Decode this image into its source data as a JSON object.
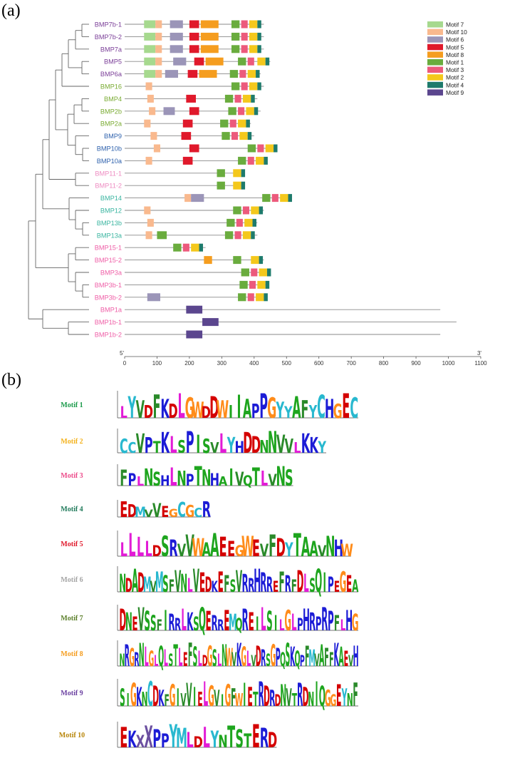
{
  "panel_a_label": "(a)",
  "panel_b_label": "(b)",
  "axis": {
    "start_label": "5'",
    "end_label": "3'",
    "ticks": [
      "0",
      "100",
      "200",
      "300",
      "400",
      "500",
      "600",
      "700",
      "800",
      "900",
      "1000",
      "1100"
    ]
  },
  "motif_colors": {
    "Motif 7": "#a6d98e",
    "Motif 10": "#f9b98e",
    "Motif 6": "#9b95b8",
    "Motif 5": "#e0192b",
    "Motif 8": "#f59d1f",
    "Motif 1": "#6aac3e",
    "Motif 3": "#ec5a7c",
    "Motif 2": "#f4c81c",
    "Motif 4": "#1e7b6c",
    "Motif 9": "#5b468e"
  },
  "legend": [
    "Motif 7",
    "Motif 10",
    "Motif 6",
    "Motif 5",
    "Motif 8",
    "Motif 1",
    "Motif 3",
    "Motif 2",
    "Motif 4",
    "Motif 9"
  ],
  "genes": [
    {
      "name": "BMP7b-1",
      "color": "#7b3f98",
      "len": 430,
      "motifs": [
        [
          "Motif 7",
          60,
          95
        ],
        [
          "Motif 10",
          95,
          115
        ],
        [
          "Motif 6",
          140,
          180
        ],
        [
          "Motif 5",
          200,
          230
        ],
        [
          "Motif 8",
          235,
          290
        ],
        [
          "Motif 1",
          330,
          355
        ],
        [
          "Motif 3",
          360,
          380
        ],
        [
          "Motif 2",
          385,
          410
        ],
        [
          "Motif 4",
          410,
          422
        ]
      ]
    },
    {
      "name": "BMP7b-2",
      "color": "#7b3f98",
      "len": 430,
      "motifs": [
        [
          "Motif 7",
          60,
          95
        ],
        [
          "Motif 10",
          95,
          115
        ],
        [
          "Motif 6",
          140,
          180
        ],
        [
          "Motif 5",
          200,
          230
        ],
        [
          "Motif 8",
          235,
          290
        ],
        [
          "Motif 1",
          330,
          355
        ],
        [
          "Motif 3",
          360,
          380
        ],
        [
          "Motif 2",
          385,
          410
        ],
        [
          "Motif 4",
          410,
          422
        ]
      ]
    },
    {
      "name": "BMP7a",
      "color": "#7b3f98",
      "len": 430,
      "motifs": [
        [
          "Motif 7",
          60,
          95
        ],
        [
          "Motif 10",
          95,
          115
        ],
        [
          "Motif 6",
          140,
          180
        ],
        [
          "Motif 5",
          200,
          230
        ],
        [
          "Motif 8",
          235,
          290
        ],
        [
          "Motif 1",
          330,
          355
        ],
        [
          "Motif 3",
          360,
          380
        ],
        [
          "Motif 2",
          385,
          410
        ],
        [
          "Motif 4",
          410,
          422
        ]
      ]
    },
    {
      "name": "BMP5",
      "color": "#7b3f98",
      "len": 450,
      "motifs": [
        [
          "Motif 7",
          60,
          95
        ],
        [
          "Motif 10",
          95,
          115
        ],
        [
          "Motif 6",
          150,
          190
        ],
        [
          "Motif 5",
          215,
          245
        ],
        [
          "Motif 8",
          250,
          305
        ],
        [
          "Motif 1",
          350,
          375
        ],
        [
          "Motif 3",
          380,
          400
        ],
        [
          "Motif 2",
          410,
          435
        ],
        [
          "Motif 4",
          435,
          447
        ]
      ]
    },
    {
      "name": "BMP6a",
      "color": "#7b3f98",
      "len": 420,
      "motifs": [
        [
          "Motif 7",
          60,
          95
        ],
        [
          "Motif 10",
          95,
          115
        ],
        [
          "Motif 6",
          125,
          165
        ],
        [
          "Motif 5",
          195,
          225
        ],
        [
          "Motif 8",
          230,
          285
        ],
        [
          "Motif 1",
          325,
          350
        ],
        [
          "Motif 3",
          355,
          375
        ],
        [
          "Motif 2",
          380,
          405
        ],
        [
          "Motif 4",
          405,
          417
        ]
      ]
    },
    {
      "name": "BMP16",
      "color": "#7aab33",
      "len": 430,
      "motifs": [
        [
          "Motif 10",
          65,
          85
        ],
        [
          "Motif 1",
          330,
          355
        ],
        [
          "Motif 3",
          360,
          380
        ],
        [
          "Motif 2",
          385,
          410
        ],
        [
          "Motif 4",
          410,
          422
        ]
      ]
    },
    {
      "name": "BMP4",
      "color": "#7aab33",
      "len": 410,
      "motifs": [
        [
          "Motif 10",
          70,
          90
        ],
        [
          "Motif 5",
          190,
          220
        ],
        [
          "Motif 1",
          310,
          335
        ],
        [
          "Motif 3",
          340,
          360
        ],
        [
          "Motif 2",
          365,
          390
        ],
        [
          "Motif 4",
          390,
          402
        ]
      ]
    },
    {
      "name": "BMP2b",
      "color": "#7aab33",
      "len": 420,
      "motifs": [
        [
          "Motif 10",
          75,
          95
        ],
        [
          "Motif 6",
          120,
          155
        ],
        [
          "Motif 5",
          200,
          230
        ],
        [
          "Motif 1",
          320,
          345
        ],
        [
          "Motif 3",
          350,
          370
        ],
        [
          "Motif 2",
          375,
          400
        ],
        [
          "Motif 4",
          400,
          412
        ]
      ]
    },
    {
      "name": "BMP2a",
      "color": "#7aab33",
      "len": 390,
      "motifs": [
        [
          "Motif 10",
          60,
          80
        ],
        [
          "Motif 5",
          180,
          210
        ],
        [
          "Motif 1",
          295,
          320
        ],
        [
          "Motif 3",
          325,
          345
        ],
        [
          "Motif 2",
          350,
          375
        ],
        [
          "Motif 4",
          375,
          387
        ]
      ]
    },
    {
      "name": "BMP9",
      "color": "#2f62ad",
      "len": 400,
      "motifs": [
        [
          "Motif 10",
          80,
          100
        ],
        [
          "Motif 5",
          175,
          205
        ],
        [
          "Motif 1",
          300,
          325
        ],
        [
          "Motif 3",
          330,
          350
        ],
        [
          "Motif 2",
          355,
          380
        ],
        [
          "Motif 4",
          380,
          392
        ]
      ]
    },
    {
      "name": "BMP10b",
      "color": "#2f62ad",
      "len": 470,
      "motifs": [
        [
          "Motif 10",
          90,
          110
        ],
        [
          "Motif 5",
          200,
          230
        ],
        [
          "Motif 1",
          380,
          405
        ],
        [
          "Motif 3",
          410,
          430
        ],
        [
          "Motif 2",
          435,
          460
        ],
        [
          "Motif 4",
          460,
          472
        ]
      ]
    },
    {
      "name": "BMP10a",
      "color": "#2f62ad",
      "len": 440,
      "motifs": [
        [
          "Motif 10",
          65,
          85
        ],
        [
          "Motif 5",
          180,
          210
        ],
        [
          "Motif 1",
          350,
          375
        ],
        [
          "Motif 3",
          380,
          400
        ],
        [
          "Motif 2",
          405,
          430
        ],
        [
          "Motif 4",
          430,
          442
        ]
      ]
    },
    {
      "name": "BMP11-1",
      "color": "#ee8bc1",
      "len": 370,
      "motifs": [
        [
          "Motif 1",
          285,
          310
        ],
        [
          "Motif 2",
          335,
          360
        ],
        [
          "Motif 4",
          360,
          372
        ]
      ]
    },
    {
      "name": "BMP11-2",
      "color": "#ee8bc1",
      "len": 370,
      "motifs": [
        [
          "Motif 1",
          285,
          310
        ],
        [
          "Motif 2",
          335,
          360
        ],
        [
          "Motif 4",
          360,
          372
        ]
      ]
    },
    {
      "name": "BMP14",
      "color": "#3ab5a0",
      "len": 510,
      "motifs": [
        [
          "Motif 10",
          185,
          205
        ],
        [
          "Motif 6",
          205,
          245
        ],
        [
          "Motif 1",
          425,
          450
        ],
        [
          "Motif 3",
          455,
          475
        ],
        [
          "Motif 2",
          480,
          505
        ],
        [
          "Motif 4",
          505,
          517
        ]
      ]
    },
    {
      "name": "BMP12",
      "color": "#3ab5a0",
      "len": 430,
      "motifs": [
        [
          "Motif 10",
          60,
          80
        ],
        [
          "Motif 1",
          335,
          360
        ],
        [
          "Motif 3",
          365,
          385
        ],
        [
          "Motif 2",
          390,
          415
        ],
        [
          "Motif 4",
          415,
          427
        ]
      ]
    },
    {
      "name": "BMP13b",
      "color": "#3ab5a0",
      "len": 410,
      "motifs": [
        [
          "Motif 10",
          70,
          90
        ],
        [
          "Motif 1",
          315,
          340
        ],
        [
          "Motif 3",
          345,
          365
        ],
        [
          "Motif 2",
          370,
          395
        ],
        [
          "Motif 4",
          395,
          407
        ]
      ]
    },
    {
      "name": "BMP13a",
      "color": "#3ab5a0",
      "len": 410,
      "motifs": [
        [
          "Motif 10",
          65,
          85
        ],
        [
          "Motif 1",
          100,
          130
        ],
        [
          "Motif 1",
          310,
          335
        ],
        [
          "Motif 3",
          340,
          360
        ],
        [
          "Motif 2",
          365,
          390
        ],
        [
          "Motif 4",
          390,
          402
        ]
      ]
    },
    {
      "name": "BMP15-1",
      "color": "#ef5fa7",
      "len": 250,
      "motifs": [
        [
          "Motif 1",
          150,
          175
        ],
        [
          "Motif 3",
          180,
          200
        ],
        [
          "Motif 2",
          205,
          230
        ],
        [
          "Motif 4",
          230,
          242
        ]
      ]
    },
    {
      "name": "BMP15-2",
      "color": "#ef5fa7",
      "len": 430,
      "motifs": [
        [
          "Motif 8",
          245,
          270
        ],
        [
          "Motif 1",
          335,
          360
        ],
        [
          "Motif 2",
          390,
          415
        ],
        [
          "Motif 4",
          415,
          427
        ]
      ]
    },
    {
      "name": "BMP3a",
      "color": "#ef5fa7",
      "len": 450,
      "motifs": [
        [
          "Motif 1",
          360,
          385
        ],
        [
          "Motif 3",
          390,
          410
        ],
        [
          "Motif 2",
          415,
          440
        ],
        [
          "Motif 4",
          440,
          452
        ]
      ]
    },
    {
      "name": "BMP3b-1",
      "color": "#ef5fa7",
      "len": 440,
      "motifs": [
        [
          "Motif 1",
          355,
          380
        ],
        [
          "Motif 3",
          385,
          405
        ],
        [
          "Motif 2",
          410,
          435
        ],
        [
          "Motif 4",
          435,
          447
        ]
      ]
    },
    {
      "name": "BMP3b-2",
      "color": "#ef5fa7",
      "len": 440,
      "motifs": [
        [
          "Motif 6",
          70,
          110
        ],
        [
          "Motif 1",
          350,
          375
        ],
        [
          "Motif 3",
          380,
          400
        ],
        [
          "Motif 2",
          405,
          430
        ],
        [
          "Motif 4",
          430,
          442
        ]
      ]
    },
    {
      "name": "BMP1a",
      "color": "#ef5fa7",
      "len": 975,
      "motifs": [
        [
          "Motif 9",
          190,
          240
        ]
      ]
    },
    {
      "name": "BMP1b-1",
      "color": "#ef5fa7",
      "len": 1025,
      "motifs": [
        [
          "Motif 9",
          240,
          290
        ]
      ]
    },
    {
      "name": "BMP1b-2",
      "color": "#ef5fa7",
      "len": 975,
      "motifs": [
        [
          "Motif 9",
          190,
          240
        ]
      ]
    }
  ],
  "logos": [
    {
      "label": "Motif 1",
      "label_color": "#1a9a4a",
      "seq": "LYVDFKDLGWDDWIIAPPGYYAFYCHGEC"
    },
    {
      "label": "Motif 2",
      "label_color": "#f4b21c",
      "seq": "CCVPTKLSPISVLYHDDNNVVLKKY"
    },
    {
      "label": "Motif 3",
      "label_color": "#ec4b8a",
      "seq": "FPLNSHLNPTNHAIVQTLVNS"
    },
    {
      "label": "Motif 4",
      "label_color": "#1f7a5a",
      "seq": "EDMVVEGCGCR"
    },
    {
      "label": "Motif 5",
      "label_color": "#e0192b",
      "seq": "LLLLDSRVVWAAEEGWEVFDYTAAVNHW"
    },
    {
      "label": "Motif 6",
      "label_color": "#a5a5a5",
      "seq": "NDADMVMSFVNLVEDKEFSVRRHRREFRFDLSQIPEGEA"
    },
    {
      "label": "Motif 7",
      "label_color": "#5b7f2a",
      "seq": "DNEVSSFIRRLKSQERREMQREILSILGLPHRPRPFLHG"
    },
    {
      "label": "Motif 8",
      "label_color": "#f59d1f",
      "seq": "NRGRNLGLQLSTLEFSLDGSLNWVKGLVDRSGPQSKQPFMVAFFKAEVH"
    },
    {
      "label": "Motif 9",
      "label_color": "#6a3fa0",
      "seq": "SIGKNCDKFGIVVIELGVIGFWIETRDRDNVTRDNIQGGEYNF"
    },
    {
      "label": "Motif 10",
      "label_color": "#b8860b",
      "seq": "EKXXPPYMLDLYNTSTERD"
    }
  ]
}
